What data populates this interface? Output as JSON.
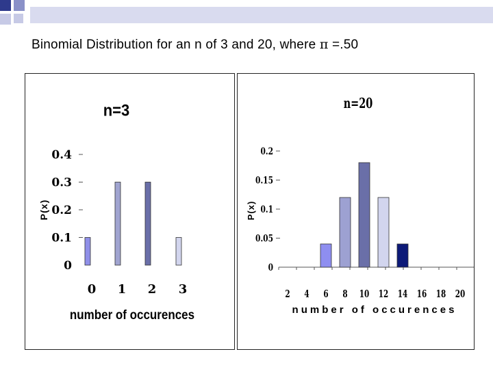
{
  "page": {
    "title": "Binomial Distribution for an n of 3 and 20, where",
    "symbol": "π",
    "title_end": "=.50"
  },
  "colors": {
    "deco_dark": "#2e3a8c",
    "deco_mid": "#8a91c8",
    "deco_light": "#c7cae6",
    "deco_bar": "#d9dbef"
  },
  "chart_data": [
    {
      "type": "bar",
      "title": "n=3",
      "xlabel": "number of occurences",
      "ylabel": "P(x)",
      "categories": [
        "0",
        "1",
        "2",
        "3"
      ],
      "values": [
        0.1,
        0.3,
        0.3,
        0.1
      ],
      "ylim": [
        0,
        0.4
      ],
      "yticks": [
        "0",
        "0.1",
        "0.2",
        "0.3",
        "0.4"
      ],
      "bar_colors": [
        "#8f8fe8",
        "#a0a4d0",
        "#6a6fa8",
        "#d2d5ee"
      ],
      "grid": false
    },
    {
      "type": "bar",
      "title": "n=20",
      "xlabel": "number of occurences",
      "ylabel": "P(x)",
      "x": [
        6,
        8,
        10,
        12,
        14
      ],
      "values": [
        0.04,
        0.12,
        0.18,
        0.12,
        0.04
      ],
      "xticks": [
        "2",
        "4",
        "6",
        "8",
        "10",
        "12",
        "14",
        "16",
        "18",
        "20"
      ],
      "yticks": [
        "0",
        "0.05",
        "0.1",
        "0.15",
        "0.2"
      ],
      "ylim": [
        0,
        0.2
      ],
      "bar_colors": [
        "#8e8ef0",
        "#9da1d2",
        "#6a6fa8",
        "#d2d5ee",
        "#0d1a78"
      ],
      "grid": false
    }
  ]
}
